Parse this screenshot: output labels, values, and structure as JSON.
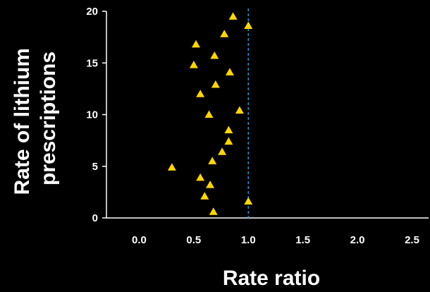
{
  "chart_data": {
    "type": "scatter",
    "xlabel": "Rate ratio",
    "ylabel_lines": [
      "Rate of lithium",
      "prescriptions"
    ],
    "xlim": [
      -0.3,
      2.6
    ],
    "ylim": [
      0,
      20
    ],
    "x_ticks": [
      0.0,
      0.5,
      1.0,
      1.5,
      2.0,
      2.5
    ],
    "x_tick_labels": [
      "0.0",
      "0.5",
      "1.0",
      "1.5",
      "2.0",
      "2.5"
    ],
    "y_ticks": [
      0,
      5,
      10,
      15,
      20
    ],
    "y_tick_labels": [
      "0",
      "5",
      "10",
      "15",
      "20"
    ],
    "reference_line_x": 1.0,
    "marker": "triangle",
    "marker_color": "#ffd700",
    "reference_line_color": "#1e90c8",
    "grid": false,
    "points": [
      {
        "x": 0.86,
        "y": 19.5
      },
      {
        "x": 1.0,
        "y": 18.6
      },
      {
        "x": 0.78,
        "y": 17.8
      },
      {
        "x": 0.52,
        "y": 16.8
      },
      {
        "x": 0.69,
        "y": 15.7
      },
      {
        "x": 0.5,
        "y": 14.8
      },
      {
        "x": 0.83,
        "y": 14.1
      },
      {
        "x": 0.7,
        "y": 12.9
      },
      {
        "x": 0.56,
        "y": 12.0
      },
      {
        "x": 0.92,
        "y": 10.4
      },
      {
        "x": 0.64,
        "y": 10.0
      },
      {
        "x": 0.82,
        "y": 8.5
      },
      {
        "x": 0.82,
        "y": 7.4
      },
      {
        "x": 0.76,
        "y": 6.4
      },
      {
        "x": 0.67,
        "y": 5.5
      },
      {
        "x": 0.3,
        "y": 4.9
      },
      {
        "x": 0.56,
        "y": 3.9
      },
      {
        "x": 0.65,
        "y": 3.2
      },
      {
        "x": 0.6,
        "y": 2.1
      },
      {
        "x": 1.0,
        "y": 1.6
      },
      {
        "x": 0.68,
        "y": 0.6
      }
    ]
  }
}
